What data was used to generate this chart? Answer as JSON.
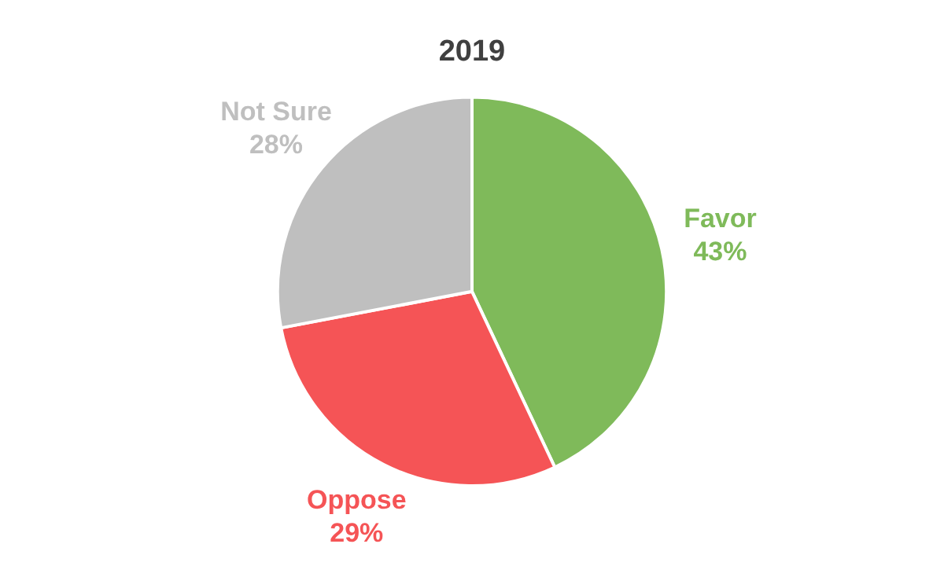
{
  "chart_data": {
    "type": "pie",
    "title": "2019",
    "categories": [
      "Favor",
      "Oppose",
      "Not Sure"
    ],
    "values": [
      43,
      29,
      28
    ],
    "value_labels": [
      "43%",
      "29%",
      "28%"
    ],
    "colors": [
      "#7fba5a",
      "#f55456",
      "#bfbfbf"
    ],
    "legend": false
  }
}
